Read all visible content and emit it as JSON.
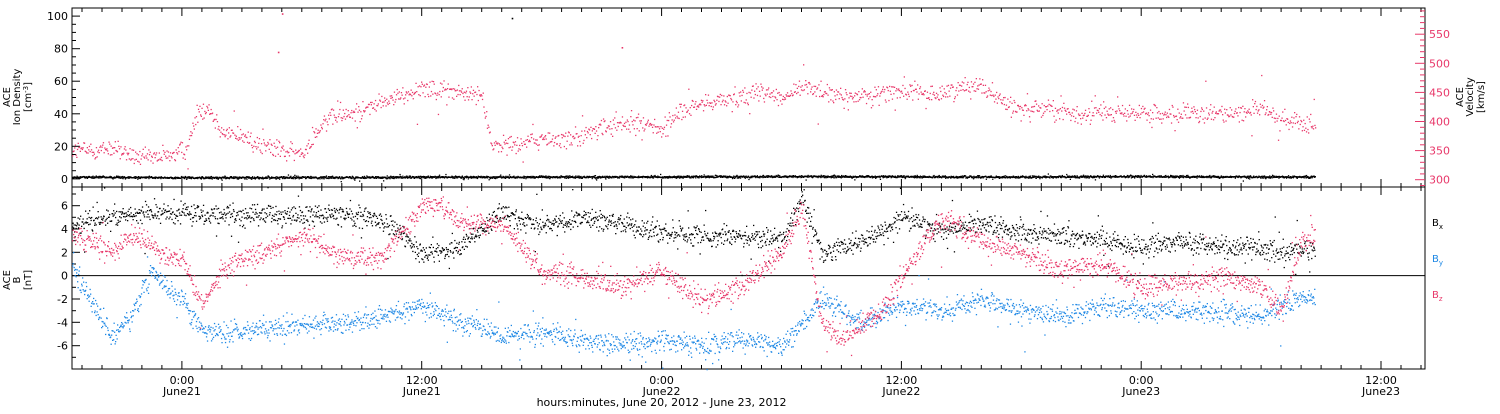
{
  "chart_data": {
    "type": "scatter",
    "x_axis": {
      "label": "hours:minutes, June 20, 2012 - June 23, 2012",
      "unit": "hours since June 20 00:00",
      "range": [
        18.5,
        86.2
      ],
      "ticks": [
        {
          "value": 24,
          "time": "0:00",
          "date": "June21"
        },
        {
          "value": 36,
          "time": "12:00",
          "date": "June21"
        },
        {
          "value": 48,
          "time": "0:00",
          "date": "June22"
        },
        {
          "value": 60,
          "time": "12:00",
          "date": "June22"
        },
        {
          "value": 72,
          "time": "0:00",
          "date": "June23"
        },
        {
          "value": 84,
          "time": "12:00",
          "date": "June23"
        }
      ],
      "data_end": 80.7
    },
    "panels": [
      {
        "id": "plasma",
        "left_axis": {
          "label_lines": [
            "ACE",
            "Ion Density"
          ],
          "unit_base": "[cm",
          "unit_sup": "-3",
          "unit_end": "]",
          "range": [
            -5,
            105
          ],
          "ticks": [
            0,
            20,
            40,
            60,
            80,
            100
          ],
          "color": "#000000"
        },
        "right_axis": {
          "label_lines": [
            "ACE",
            "Velocity"
          ],
          "unit": "[km/s]",
          "range": [
            287.5,
            595
          ],
          "ticks": [
            300,
            350,
            400,
            450,
            500,
            550
          ],
          "color": "#e8386a"
        },
        "series": [
          {
            "name": "Ion Density",
            "axis": "left",
            "color": "#000000",
            "x": [
              18.5,
              24,
              30,
              36,
              42,
              48,
              54,
              60,
              66,
              72,
              78,
              80.7
            ],
            "y": [
              1.5,
              1,
              1.2,
              1.3,
              1.5,
              1.5,
              1.8,
              1.6,
              1.5,
              1.8,
              1.5,
              1.5
            ]
          },
          {
            "name": "Velocity",
            "axis": "right",
            "color": "#e8386a",
            "x": [
              18.5,
              19.5,
              20.5,
              21.5,
              22.5,
              23.5,
              24,
              24.3,
              24.8,
              25.3,
              26,
              27,
              28,
              29,
              30,
              31,
              32,
              33,
              34,
              35,
              36,
              37,
              38,
              39,
              39.5,
              40,
              41,
              42,
              43,
              44,
              45,
              46,
              47,
              48,
              49,
              50,
              51,
              52,
              53,
              54,
              55,
              56,
              57,
              58,
              59,
              60,
              61,
              62,
              63,
              64,
              65,
              66,
              67,
              68,
              69,
              70,
              71,
              72,
              73,
              74,
              75,
              76,
              77,
              78,
              79,
              80,
              80.7
            ],
            "y": [
              353,
              350,
              355,
              340,
              337,
              345,
              349,
              360,
              420,
              425,
              385,
              375,
              360,
              350,
              345,
              400,
              410,
              420,
              435,
              445,
              460,
              455,
              450,
              445,
              360,
              360,
              365,
              370,
              370,
              375,
              390,
              395,
              400,
              385,
              420,
              430,
              440,
              445,
              455,
              440,
              460,
              455,
              440,
              445,
              450,
              455,
              445,
              450,
              460,
              465,
              435,
              420,
              430,
              415,
              410,
              420,
              415,
              415,
              410,
              415,
              412,
              415,
              418,
              425,
              400,
              397,
              395
            ]
          }
        ],
        "outliers": [
          {
            "series": "Velocity",
            "x": 29.0,
            "y": 586
          },
          {
            "series": "Velocity",
            "x": 28.8,
            "y": 520
          },
          {
            "series": "Velocity",
            "x": 46.0,
            "y": 528
          },
          {
            "series": "Ion Density",
            "x": 40.5,
            "y": 99
          }
        ]
      },
      {
        "id": "mag",
        "left_axis": {
          "label_lines": [
            "ACE",
            "B"
          ],
          "unit": "[nT]",
          "range": [
            -8,
            7.6
          ],
          "ticks": [
            -6,
            -4,
            -2,
            0,
            2,
            4,
            6
          ],
          "color": "#000000"
        },
        "zero_line": true,
        "legend": [
          {
            "label": "B",
            "sub": "x",
            "color": "#000000"
          },
          {
            "label": "B",
            "sub": "y",
            "color": "#1e88e5"
          },
          {
            "label": "B",
            "sub": "z",
            "color": "#e8386a"
          }
        ],
        "series": [
          {
            "name": "Bx",
            "color": "#000000",
            "x": [
              18.5,
              20,
              22,
              24,
              26,
              28,
              30,
              32,
              34,
              36,
              38,
              40,
              42,
              44,
              46,
              47,
              48,
              50,
              52,
              54,
              55,
              56,
              58,
              60,
              62,
              64,
              66,
              68,
              70,
              72,
              74,
              76,
              78,
              79,
              80,
              80.7
            ],
            "y": [
              4.5,
              5.0,
              5.5,
              5.5,
              5.2,
              5.3,
              5.2,
              5.4,
              4.8,
              2.0,
              2.5,
              5.5,
              4.2,
              5.0,
              4.5,
              4.0,
              3.8,
              3.5,
              3.5,
              3.0,
              6.5,
              2.0,
              3.0,
              5.0,
              4.0,
              4.5,
              3.8,
              3.5,
              3.0,
              2.5,
              3.0,
              2.5,
              2.5,
              2.0,
              2.5,
              2.0
            ]
          },
          {
            "name": "By",
            "color": "#1e88e5",
            "x": [
              18.5,
              19.5,
              20.5,
              21.5,
              22.5,
              23.5,
              24,
              25,
              26,
              28,
              30,
              32,
              34,
              36,
              38,
              40,
              42,
              44,
              46,
              48,
              50,
              52,
              54,
              56,
              58,
              60,
              62,
              64,
              66,
              68,
              70,
              72,
              74,
              76,
              78,
              79,
              80,
              80.7
            ],
            "y": [
              1.0,
              -2.5,
              -5.0,
              -3.5,
              0.5,
              -1.5,
              -2.0,
              -4.5,
              -5.0,
              -4.5,
              -4.2,
              -4.0,
              -3.5,
              -2.5,
              -4.0,
              -5.0,
              -5.0,
              -5.5,
              -5.8,
              -5.6,
              -6.0,
              -5.5,
              -6.0,
              -2.0,
              -4.0,
              -2.5,
              -3.0,
              -2.0,
              -3.0,
              -3.5,
              -2.5,
              -3.0,
              -3.0,
              -3.2,
              -3.5,
              -2.5,
              -2.0,
              -1.8
            ]
          },
          {
            "name": "Bz",
            "color": "#e8386a",
            "x": [
              18.5,
              19.5,
              20.5,
              21.5,
              22.5,
              23.5,
              24,
              25,
              26,
              28,
              30,
              32,
              34,
              36,
              37,
              38,
              40,
              42,
              44,
              46,
              48,
              50,
              52,
              54,
              55,
              56,
              57,
              58,
              59,
              60,
              62,
              64,
              66,
              68,
              70,
              72,
              74,
              76,
              78,
              79,
              80,
              80.7
            ],
            "y": [
              3.5,
              3.0,
              2.0,
              3.5,
              2.5,
              1.5,
              1.5,
              -2.5,
              0.5,
              2.0,
              3.5,
              1.5,
              1.5,
              6.0,
              6.0,
              4.5,
              4.5,
              0.5,
              0.0,
              -1.0,
              0.5,
              -2.0,
              -1.0,
              2.0,
              6.0,
              -4.0,
              -5.5,
              -4.0,
              -3.0,
              0.0,
              5.0,
              3.0,
              2.0,
              0.5,
              1.0,
              -1.0,
              -0.5,
              0.0,
              -1.0,
              -3.0,
              3.0,
              3.5
            ]
          }
        ]
      }
    ]
  }
}
